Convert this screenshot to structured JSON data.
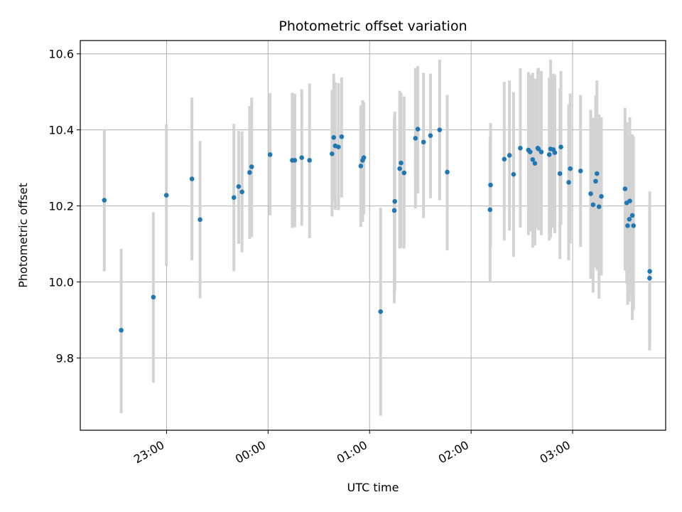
{
  "chart_data": {
    "type": "scatter",
    "title": "Photometric offset variation",
    "xlabel": "UTC time",
    "ylabel": "Photometric offset",
    "x_tick_labels": [
      "23:00",
      "00:00",
      "01:00",
      "02:00",
      "03:00"
    ],
    "x_ticks_minutes": [
      1380,
      1440,
      1500,
      1560,
      1620
    ],
    "y_ticks": [
      9.8,
      10.0,
      10.2,
      10.4,
      10.6
    ],
    "y_tick_labels": [
      "9.8",
      "10.0",
      "10.2",
      "10.4",
      "10.6"
    ],
    "xlim_minutes": [
      1329,
      1675
    ],
    "ylim": [
      9.61,
      10.635
    ],
    "grid": true,
    "colors": {
      "point": "#1f77b4",
      "errorbar": "#d3d3d3",
      "grid": "#b0b0b0"
    },
    "series": [
      {
        "x_minutes": [
          1343.2,
          1353.2,
          1372.2,
          1379.9,
          1395.0,
          1399.8,
          1419.8,
          1422.6,
          1424.6,
          1429.1,
          1430.3,
          1441.2,
          1454.3,
          1455.8,
          1459.9,
          1464.5,
          1477.8,
          1478.8,
          1479.7,
          1481.6,
          1483.5,
          1494.8,
          1495.9,
          1496.6,
          1506.5,
          1514.6,
          1514.9,
          1517.8,
          1518.6,
          1520.4,
          1527.1,
          1528.5,
          1531.9,
          1536.0,
          1541.4,
          1545.9,
          1571.2,
          1571.5,
          1579.6,
          1582.7,
          1585.1,
          1589.1,
          1593.9,
          1594.9,
          1596.4,
          1597.7,
          1599.4,
          1599.8,
          1601.5,
          1606.2,
          1607.0,
          1608.6,
          1609.5,
          1612.5,
          1613.1,
          1617.7,
          1618.6,
          1624.7,
          1630.7,
          1632.1,
          1633.6,
          1634.4,
          1635.6,
          1637.0,
          1651.0,
          1652.0,
          1652.5,
          1653.5,
          1653.8,
          1655.3,
          1656.0,
          1665.5,
          1665.6
        ],
        "y": [
          10.215,
          9.873,
          9.96,
          10.228,
          10.271,
          10.164,
          10.222,
          10.251,
          10.237,
          10.288,
          10.303,
          10.335,
          10.32,
          10.32,
          10.327,
          10.32,
          10.337,
          10.38,
          10.358,
          10.355,
          10.382,
          10.305,
          10.32,
          10.327,
          9.922,
          10.188,
          10.212,
          10.298,
          10.313,
          10.287,
          10.378,
          10.402,
          10.368,
          10.385,
          10.4,
          10.289,
          10.19,
          10.255,
          10.323,
          10.333,
          10.283,
          10.352,
          10.347,
          10.342,
          10.322,
          10.312,
          10.352,
          10.35,
          10.342,
          10.335,
          10.35,
          10.348,
          10.34,
          10.285,
          10.355,
          10.262,
          10.298,
          10.292,
          10.232,
          10.203,
          10.265,
          10.285,
          10.198,
          10.225,
          10.245,
          10.208,
          10.148,
          10.165,
          10.213,
          10.175,
          10.148,
          10.01,
          10.028
        ],
        "y_low": [
          10.028,
          9.655,
          9.735,
          10.042,
          10.057,
          9.957,
          10.028,
          10.1,
          10.078,
          10.113,
          10.118,
          10.175,
          10.142,
          10.144,
          10.148,
          10.115,
          10.172,
          10.213,
          10.19,
          10.189,
          10.222,
          10.145,
          10.158,
          10.178,
          9.648,
          9.944,
          9.976,
          10.088,
          10.09,
          10.088,
          10.193,
          10.233,
          10.168,
          10.22,
          10.215,
          10.083,
          9.998,
          10.092,
          10.109,
          10.135,
          10.066,
          10.143,
          10.123,
          10.133,
          10.09,
          10.096,
          10.142,
          10.136,
          10.123,
          10.109,
          10.116,
          10.142,
          10.128,
          10.06,
          10.15,
          10.057,
          10.101,
          10.092,
          10.008,
          9.972,
          10.038,
          10.03,
          9.956,
          10.017,
          10.03,
          9.996,
          9.94,
          9.948,
          9.97,
          9.9,
          9.927,
          9.82,
          9.836
        ],
        "y_high": [
          10.402,
          10.087,
          10.183,
          10.415,
          10.485,
          10.371,
          10.416,
          10.397,
          10.396,
          10.463,
          10.485,
          10.497,
          10.498,
          10.495,
          10.507,
          10.522,
          10.505,
          10.548,
          10.525,
          10.523,
          10.538,
          10.464,
          10.478,
          10.473,
          10.195,
          10.433,
          10.448,
          10.503,
          10.498,
          10.488,
          10.563,
          10.568,
          10.55,
          10.548,
          10.585,
          10.492,
          10.382,
          10.418,
          10.526,
          10.53,
          10.499,
          10.562,
          10.552,
          10.545,
          10.55,
          10.535,
          10.56,
          10.563,
          10.555,
          10.538,
          10.585,
          10.548,
          10.545,
          10.508,
          10.555,
          10.467,
          10.496,
          10.492,
          10.453,
          10.432,
          10.49,
          10.53,
          10.441,
          10.433,
          10.458,
          10.42,
          10.356,
          10.387,
          10.433,
          10.388,
          10.383,
          10.205,
          10.238
        ]
      }
    ]
  }
}
